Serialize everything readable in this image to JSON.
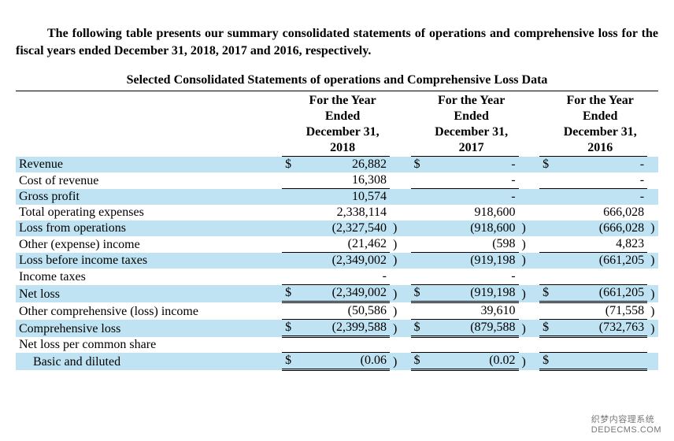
{
  "intro": "The following table presents our summary consolidated statements of operations and comprehensive loss for the fiscal years ended December 31, 2018, 2017 and 2016, respectively.",
  "title": "Selected Consolidated Statements of operations and Comprehensive Loss Data",
  "colors": {
    "highlight": "#bfe3f2",
    "rule": "#000000",
    "text": "#000000"
  },
  "columns": [
    {
      "line1": "For the Year",
      "line2": "Ended",
      "line3": "December 31,",
      "line4": "2018"
    },
    {
      "line1": "For the Year",
      "line2": "Ended",
      "line3": "December 31,",
      "line4": "2017"
    },
    {
      "line1": "For the Year",
      "line2": "Ended",
      "line3": "December 31,",
      "line4": "2016"
    }
  ],
  "rows": [
    {
      "label": "Revenue",
      "c1_sym": "$",
      "c1": "26,882",
      "c2_sym": "$",
      "c2": "-",
      "c3_sym": "$",
      "c3": "-",
      "hl": true
    },
    {
      "label": "Cost of revenue",
      "c1": "16,308",
      "c2": "-",
      "c3": "-"
    },
    {
      "label": "Gross profit",
      "c1": "10,574",
      "c2": "-",
      "c3": "-",
      "hl": true,
      "topline": true
    },
    {
      "label": "Total operating expenses",
      "c1": "2,338,114",
      "c2": "918,600",
      "c3": "666,028"
    },
    {
      "label": "Loss from operations",
      "c1": "(2,327,540",
      "c1p": ")",
      "c2": "(918,600",
      "c2p": ")",
      "c3": "(666,028",
      "c3p": ")",
      "hl": true
    },
    {
      "label": "Other (expense) income",
      "c1": "(21,462",
      "c1p": ")",
      "c2": "(598",
      "c2p": ")",
      "c3": "4,823"
    },
    {
      "label": "Loss before income taxes",
      "c1": "(2,349,002",
      "c1p": ")",
      "c2": "(919,198",
      "c2p": ")",
      "c3": "(661,205",
      "c3p": ")",
      "hl": true,
      "topline": true
    },
    {
      "label": "Income taxes",
      "c1": "-",
      "c2": "-",
      "c3": ""
    },
    {
      "label": "Net loss",
      "c1_sym": "$",
      "c1": "(2,349,002",
      "c1p": ")",
      "c2_sym": "$",
      "c2": "(919,198",
      "c2p": ")",
      "c3_sym": "$",
      "c3": "(661,205",
      "c3p": ")",
      "hl": true,
      "topline": true,
      "dbl": true
    },
    {
      "label": "Other comprehensive (loss) income",
      "c1": "(50,586",
      "c1p": ")",
      "c2": "39,610",
      "c3": "(71,558",
      "c3p": ")"
    },
    {
      "label": "Comprehensive loss",
      "c1_sym": "$",
      "c1": "(2,399,588",
      "c1p": ")",
      "c2_sym": "$",
      "c2": "(879,588",
      "c2p": ")",
      "c3_sym": "$",
      "c3": "(732,763",
      "c3p": ")",
      "hl": true,
      "topline": true,
      "dbl": true
    },
    {
      "label": "Net loss per common share"
    },
    {
      "label": "Basic and diluted",
      "indent": true,
      "c1_sym": "$",
      "c1": "(0.06",
      "c1p": ")",
      "c2_sym": "$",
      "c2": "(0.02",
      "c2p": ")",
      "c3_sym": "$",
      "c3": "",
      "hl": true,
      "topline": true,
      "dbl": true
    }
  ],
  "watermark": {
    "line1": "织梦内容理系统",
    "line2": "DEDECMS.COM"
  }
}
